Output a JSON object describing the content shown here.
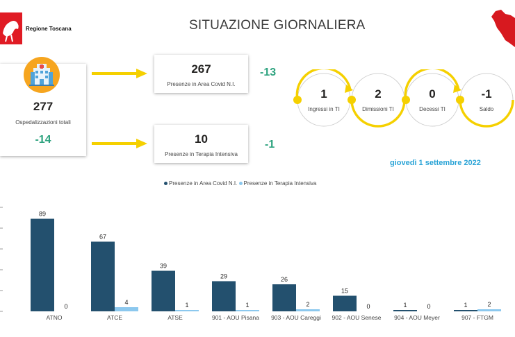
{
  "header": {
    "region_name": "Regione Toscana",
    "title": "SITUAZIONE GIORNALIERA"
  },
  "summary": {
    "total": {
      "value": "277",
      "label": "Ospedalizzazioni totali",
      "delta": "-14"
    },
    "area_covid": {
      "value": "267",
      "label": "Presenze in Area Covid N.I.",
      "delta": "-13"
    },
    "terapia_intensiva": {
      "value": "10",
      "label": "Presenze in Terapia Intensiva",
      "delta": "-1"
    }
  },
  "flow": [
    {
      "value": "1",
      "label": "Ingressi in TI"
    },
    {
      "value": "2",
      "label": "Dimissioni TI"
    },
    {
      "value": "0",
      "label": "Decessi TI"
    },
    {
      "value": "-1",
      "label": "Saldo"
    }
  ],
  "date": "giovedì 1 settembre 2022",
  "colors": {
    "accent_yellow": "#f5d000",
    "delta_green": "#2ea37f",
    "series_dark": "#23506e",
    "series_light": "#8cc8ee",
    "date_blue": "#29a3d6",
    "hospital_orange": "#f6a51f"
  },
  "icons": [
    "hospital-icon",
    "region-logo-icon",
    "tuscany-map-icon",
    "arrow-right-icon"
  ],
  "chart_data": {
    "type": "bar",
    "categories": [
      "ATNO",
      "ATCE",
      "ATSE",
      "901 - AOU Pisana",
      "903 - AOU Careggi",
      "902 - AOU Senese",
      "904 - AOU Meyer",
      "907 - FTGM"
    ],
    "series": [
      {
        "name": "Presenze in Area Covid N.I.",
        "values": [
          89,
          67,
          39,
          29,
          26,
          15,
          1,
          1
        ]
      },
      {
        "name": "Presenze in Terapia Intensiva",
        "values": [
          0,
          4,
          1,
          1,
          2,
          0,
          0,
          2
        ]
      }
    ],
    "ylim": [
      0,
      100
    ],
    "legend": "top-center",
    "grid": false
  }
}
